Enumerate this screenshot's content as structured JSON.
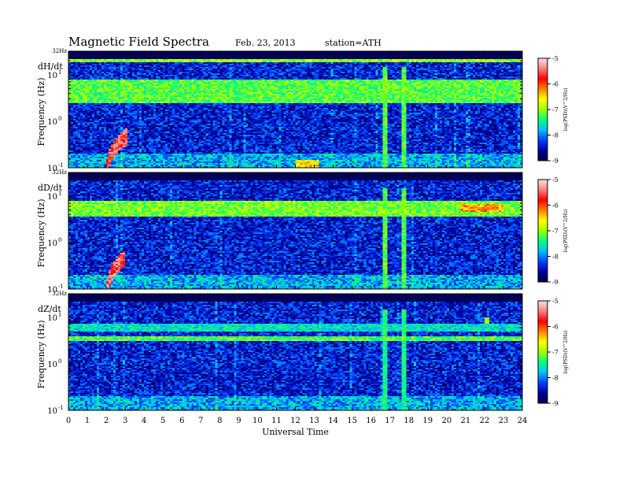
{
  "header": {
    "title": "Magnetic  Field  Spectra",
    "date": "Feb. 23, 2013",
    "station": "station=ATH"
  },
  "colors": {
    "colormap": [
      "#000040",
      "#0000a0",
      "#0040ff",
      "#00c0ff",
      "#00ff80",
      "#a0ff00",
      "#ffff00",
      "#ff8000",
      "#ff0000",
      "#ff8080",
      "#ffe0e0"
    ]
  },
  "chart_data": [
    {
      "type": "heatmap",
      "panel_label": "dH/dt",
      "ylabel": "Frequency (Hz)",
      "xlabel": "",
      "xlim": [
        0,
        24
      ],
      "ylim": [
        0.1,
        32
      ],
      "yscale": "log",
      "y_ticks": [
        {
          "value": 0.1,
          "label": "10"
        },
        {
          "value": 1,
          "label": "10"
        },
        {
          "value": 10,
          "label": "10"
        }
      ],
      "y_tick_exps": [
        "-1",
        "0",
        "1"
      ],
      "y_top_label": "32Hz",
      "colorbar": {
        "label": "log(PSD)(V^2/Hz)",
        "range": [
          -9,
          -5
        ],
        "ticks": [
          -9,
          -8,
          -7,
          -6,
          -5
        ],
        "tick_labels": [
          "-9",
          "-8",
          "-7",
          "-6",
          "-5"
        ]
      },
      "features": [
        {
          "type": "band",
          "fmin": 2.5,
          "fmax": 8,
          "t0": 0,
          "t1": 24,
          "level": -7.2
        },
        {
          "type": "band",
          "fmin": 19,
          "fmax": 21,
          "t0": 0,
          "t1": 24,
          "level": -7.0
        },
        {
          "type": "burst",
          "t0": 2.0,
          "t1": 3.1,
          "fmax": 0.6,
          "level": -5.6
        },
        {
          "type": "noise",
          "t0": 12.0,
          "t1": 13.2,
          "fmin": 0.1,
          "fmax": 0.15,
          "level": -6.5
        },
        {
          "type": "line",
          "t": 16.8,
          "level": -7.2
        },
        {
          "type": "line",
          "t": 17.8,
          "level": -7.2
        }
      ]
    },
    {
      "type": "heatmap",
      "panel_label": "dD/dt",
      "ylabel": "Frequency (Hz)",
      "xlabel": "",
      "xlim": [
        0,
        24
      ],
      "ylim": [
        0.1,
        32
      ],
      "yscale": "log",
      "y_ticks": [
        {
          "value": 0.1,
          "label": "10"
        },
        {
          "value": 1,
          "label": "10"
        },
        {
          "value": 10,
          "label": "10"
        }
      ],
      "y_tick_exps": [
        "-1",
        "0",
        "1"
      ],
      "y_top_label": "32Hz",
      "colorbar": {
        "label": "log(PSD)(V^2/Hz)",
        "range": [
          -9,
          -5
        ],
        "ticks": [
          -9,
          -8,
          -7,
          -6,
          -5
        ],
        "tick_labels": [
          "-9",
          "-8",
          "-7",
          "-6",
          "-5"
        ]
      },
      "features": [
        {
          "type": "band",
          "fmin": 3.5,
          "fmax": 8,
          "t0": 0,
          "t1": 24,
          "level": -7.1
        },
        {
          "type": "band",
          "fmin": 4.5,
          "fmax": 6.5,
          "t0": 20.8,
          "t1": 23,
          "level": -6.3
        },
        {
          "type": "burst",
          "t0": 2.0,
          "t1": 3.0,
          "fmax": 0.6,
          "level": -5.5
        },
        {
          "type": "line",
          "t": 16.8,
          "level": -7.2
        },
        {
          "type": "line",
          "t": 17.8,
          "level": -7.2
        }
      ]
    },
    {
      "type": "heatmap",
      "panel_label": "dZ/dt",
      "ylabel": "Frequency (Hz)",
      "xlabel": "Universal Time",
      "xlim": [
        0,
        24
      ],
      "ylim": [
        0.1,
        32
      ],
      "yscale": "log",
      "x_ticks": [
        0,
        1,
        2,
        3,
        4,
        5,
        6,
        7,
        8,
        9,
        10,
        11,
        12,
        13,
        14,
        15,
        16,
        17,
        18,
        19,
        20,
        21,
        22,
        23,
        24
      ],
      "x_tick_labels": [
        "0",
        "1",
        "2",
        "3",
        "4",
        "5",
        "6",
        "7",
        "8",
        "9",
        "10",
        "11",
        "12",
        "13",
        "14",
        "15",
        "16",
        "17",
        "18",
        "19",
        "20",
        "21",
        "22",
        "23",
        "24"
      ],
      "y_ticks": [
        {
          "value": 0.1,
          "label": "10"
        },
        {
          "value": 1,
          "label": "10"
        },
        {
          "value": 10,
          "label": "10"
        }
      ],
      "y_tick_exps": [
        "-1",
        "0",
        "1"
      ],
      "y_top_label": "32Hz",
      "colorbar": {
        "label": "log(PSD)(V^2/Hz)",
        "range": [
          -9,
          -5
        ],
        "ticks": [
          -9,
          -8,
          -7,
          -6,
          -5
        ],
        "tick_labels": [
          "-9",
          "-8",
          "-7",
          "-6",
          "-5"
        ]
      },
      "features": [
        {
          "type": "band",
          "fmin": 3.2,
          "fmax": 4.0,
          "t0": 0,
          "t1": 24,
          "level": -7.2
        },
        {
          "type": "band",
          "fmin": 5,
          "fmax": 7,
          "t0": 0,
          "t1": 24,
          "level": -7.6
        },
        {
          "type": "patch",
          "t0": 22.0,
          "t1": 22.3,
          "fmin": 7,
          "fmax": 10,
          "level": -7.0
        },
        {
          "type": "line",
          "t": 16.8,
          "level": -7.4
        },
        {
          "type": "line",
          "t": 17.8,
          "level": -7.4
        }
      ]
    }
  ]
}
